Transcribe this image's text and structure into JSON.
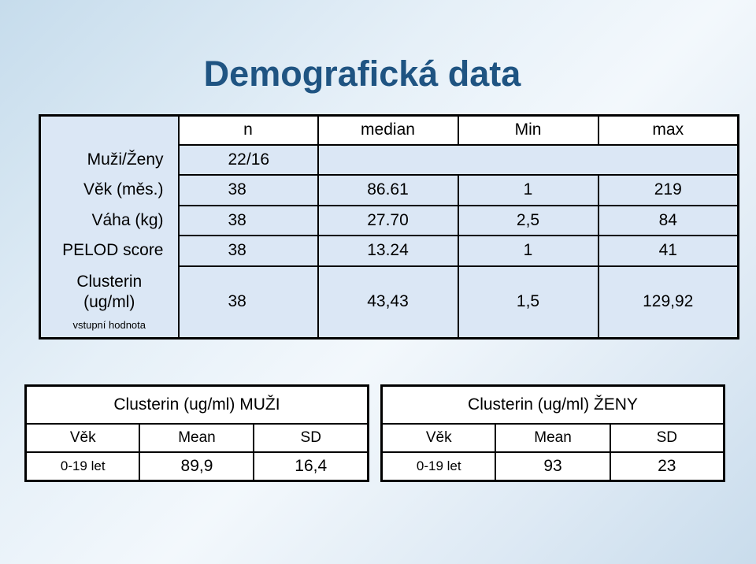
{
  "title": "Demografická data",
  "main_table": {
    "headers": [
      "n",
      "median",
      "Min",
      "max"
    ],
    "rows": [
      {
        "label": "Muži/Ženy",
        "n": "22/16",
        "median": "",
        "min": "",
        "max": ""
      },
      {
        "label": "Věk (měs.)",
        "n": "38",
        "median": "86.61",
        "min": "1",
        "max": "219"
      },
      {
        "label": "Váha (kg)",
        "n": "38",
        "median": "27.70",
        "min": "2,5",
        "max": "84"
      },
      {
        "label": "PELOD score",
        "n": "38",
        "median": "13.24",
        "min": "1",
        "max": "41"
      },
      {
        "label_line1": "Clusterin",
        "label_line2": "(ug/ml)",
        "note": "vstupní hodnota",
        "n": "38",
        "median": "43,43",
        "min": "1,5",
        "max": "129,92"
      }
    ]
  },
  "men_table": {
    "title": "Clusterin (ug/ml) MUŽI",
    "headers": [
      "Věk",
      "Mean",
      "SD"
    ],
    "row": {
      "age": "0-19 let",
      "mean": "89,9",
      "sd": "16,4"
    }
  },
  "women_table": {
    "title": "Clusterin (ug/ml) ŽENY",
    "headers": [
      "Věk",
      "Mean",
      "SD"
    ],
    "row": {
      "age": "0-19 let",
      "mean": "93",
      "sd": "23"
    }
  }
}
